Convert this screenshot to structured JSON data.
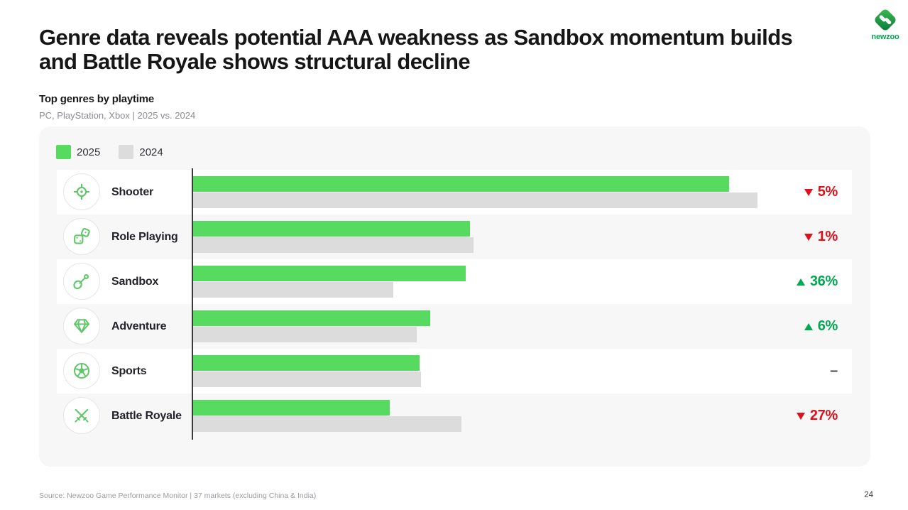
{
  "header": {
    "title_lines": [
      "Genre data reveals potential AAA weakness as Sandbox momentum builds",
      "and Battle Royale shows structural decline"
    ],
    "logo_text": "newzoo"
  },
  "subtitle": {
    "heading": "Top genres by playtime",
    "detail": "PC, PlayStation, Xbox | 2025 vs. 2024"
  },
  "legend": [
    {
      "label": "2025",
      "color": "#57da60"
    },
    {
      "label": "2024",
      "color": "#dcdcdd"
    }
  ],
  "chart_data": {
    "type": "bar",
    "orientation": "horizontal",
    "title": "Top genres by playtime",
    "subtitle": "PC, PlayStation, Xbox | 2025 vs. 2024",
    "unit": "relative playtime index (Shooter 2024 = 100, values estimated from bar lengths)",
    "categories": [
      "Shooter",
      "Role Playing",
      "Sandbox",
      "Adventure",
      "Sports",
      "Battle Royale"
    ],
    "series": [
      {
        "name": "2025",
        "color": "#57da60",
        "values": [
          95.0,
          49.1,
          48.3,
          42.0,
          40.1,
          34.8
        ]
      },
      {
        "name": "2024",
        "color": "#dcdcdd",
        "values": [
          100.0,
          49.7,
          35.5,
          39.6,
          40.4,
          47.5
        ]
      }
    ],
    "change_labels": [
      {
        "direction": "down",
        "text": "5%"
      },
      {
        "direction": "down",
        "text": "1%"
      },
      {
        "direction": "up",
        "text": "36%"
      },
      {
        "direction": "up",
        "text": "6%"
      },
      {
        "direction": "flat",
        "text": "–"
      },
      {
        "direction": "down",
        "text": "27%"
      }
    ],
    "icons": [
      "crosshair-icon",
      "dice-icon",
      "shovel-icon",
      "gem-icon",
      "soccer-ball-icon",
      "crossed-swords-icon"
    ],
    "axis_max": 117,
    "legend_position": "top-left",
    "grid": false,
    "colors": {
      "up": "#00a850",
      "down": "#e0111a",
      "flat": "#4a4a4a",
      "axis": "#3a3a3a"
    }
  },
  "footer": {
    "source": "Source: Newzoo Game Performance Monitor | 37 markets (excluding China & India)",
    "page_number": "24"
  }
}
